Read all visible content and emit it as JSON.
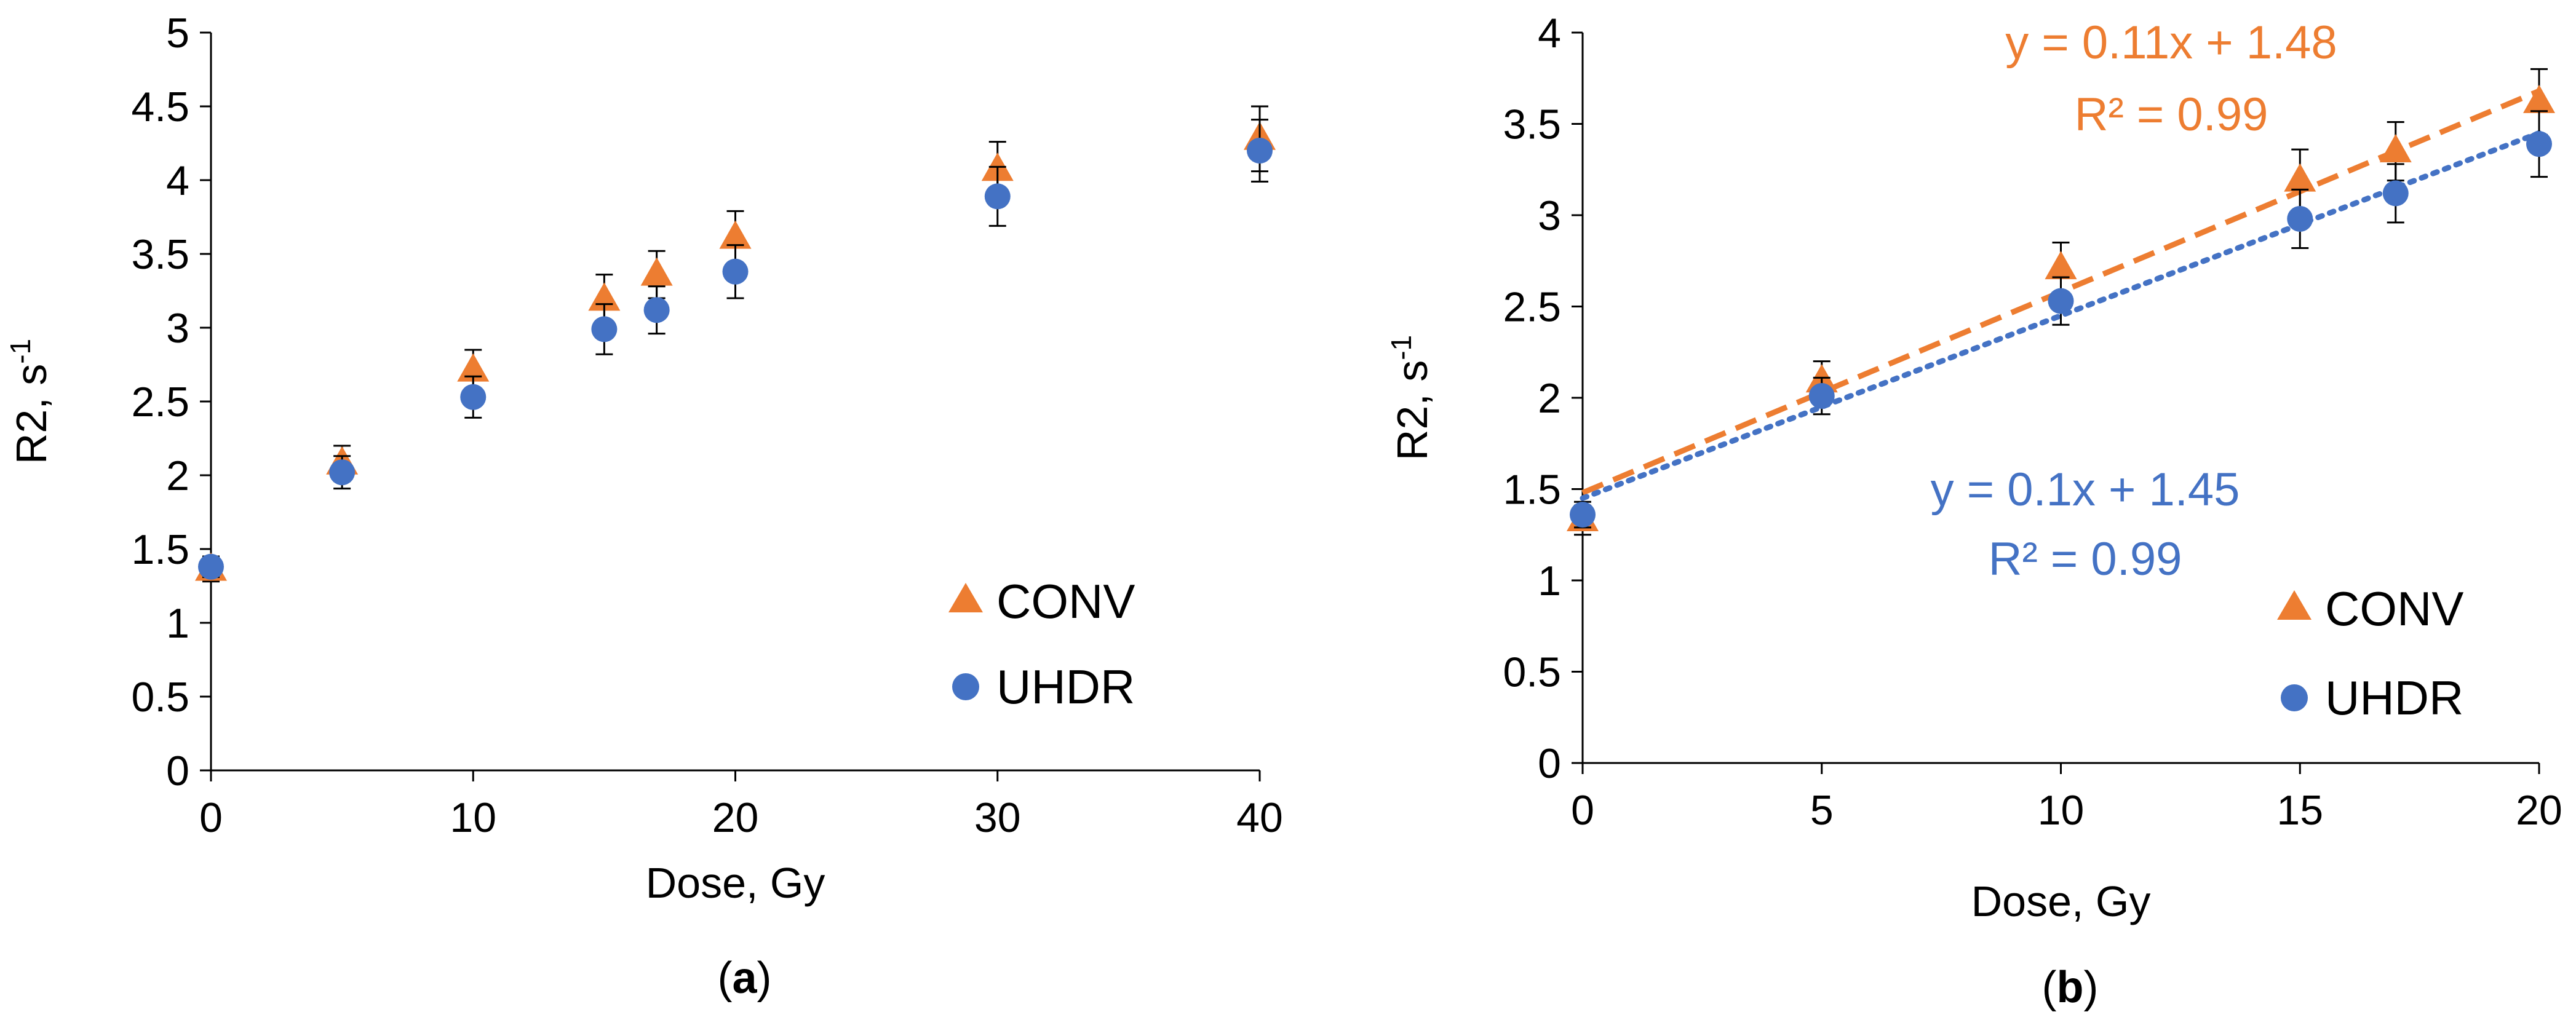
{
  "colors": {
    "conv": "#ED7D31",
    "uhdr": "#4472C4",
    "axis": "#000000",
    "error_bar": "#000000"
  },
  "chart_data": [
    {
      "type": "scatter",
      "panel_label": {
        "open": "(",
        "letter": "a",
        "close": ")"
      },
      "xlabel": "Dose, Gy",
      "ylabel": {
        "text": "R2, s",
        "sup": "-1"
      },
      "xlim": [
        0,
        40
      ],
      "ylim": [
        0,
        5
      ],
      "xticks": [
        0,
        10,
        20,
        30,
        40
      ],
      "yticks": [
        0,
        0.5,
        1,
        1.5,
        2,
        2.5,
        3,
        3.5,
        4,
        4.5,
        5
      ],
      "grid": false,
      "legend_position": "lower-right",
      "series": [
        {
          "name": "CONV",
          "marker": "triangle",
          "x": [
            0,
            5,
            10,
            15,
            17,
            20,
            30,
            40
          ],
          "y": [
            1.36,
            2.08,
            2.71,
            3.19,
            3.36,
            3.61,
            4.07,
            4.28
          ],
          "err": [
            0.08,
            0.12,
            0.14,
            0.17,
            0.16,
            0.18,
            0.19,
            0.22
          ]
        },
        {
          "name": "UHDR",
          "marker": "circle",
          "x": [
            0,
            5,
            10,
            15,
            17,
            20,
            30,
            40
          ],
          "y": [
            1.38,
            2.02,
            2.53,
            2.99,
            3.12,
            3.38,
            3.89,
            4.2
          ],
          "err": [
            0.07,
            0.11,
            0.14,
            0.17,
            0.16,
            0.18,
            0.2,
            0.21
          ]
        }
      ]
    },
    {
      "type": "scatter",
      "panel_label": {
        "open": "(",
        "letter": "b",
        "close": ")"
      },
      "xlabel": "Dose, Gy",
      "ylabel": {
        "text": "R2, s",
        "sup": "-1"
      },
      "xlim": [
        0,
        20
      ],
      "ylim": [
        0,
        4
      ],
      "xticks": [
        0,
        5,
        10,
        15,
        20
      ],
      "yticks": [
        0,
        0.5,
        1,
        1.5,
        2,
        2.5,
        3,
        3.5,
        4
      ],
      "grid": false,
      "legend_position": "lower-right",
      "series": [
        {
          "name": "CONV",
          "marker": "triangle",
          "x": [
            0,
            5,
            10,
            15,
            17,
            20
          ],
          "y": [
            1.33,
            2.09,
            2.71,
            3.19,
            3.35,
            3.62
          ],
          "err": [
            0.08,
            0.11,
            0.14,
            0.17,
            0.16,
            0.18
          ],
          "trendline": {
            "slope": 0.11,
            "intercept": 1.48,
            "style": "dashed",
            "equation": "y = 0.11x + 1.48",
            "r2": "R² = 0.99"
          }
        },
        {
          "name": "UHDR",
          "marker": "circle",
          "x": [
            0,
            5,
            10,
            15,
            17,
            20
          ],
          "y": [
            1.36,
            2.01,
            2.53,
            2.98,
            3.12,
            3.39
          ],
          "err": [
            0.07,
            0.1,
            0.13,
            0.16,
            0.16,
            0.18
          ],
          "trendline": {
            "slope": 0.1,
            "intercept": 1.45,
            "style": "dotted",
            "equation": "y = 0.1x + 1.45",
            "r2": "R² = 0.99"
          }
        }
      ]
    }
  ]
}
